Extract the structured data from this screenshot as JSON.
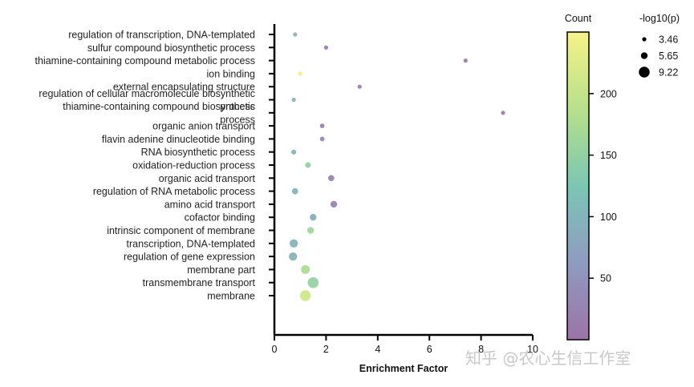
{
  "chart_data": {
    "type": "scatter",
    "title": "",
    "xlabel": "Enrichment Factor",
    "ylabel": "",
    "xlim": [
      0,
      10
    ],
    "xticks": [
      "0",
      "2",
      "4",
      "6",
      "8",
      "10"
    ],
    "categories": [
      {
        "label": [
          "regulation of transcription, DNA-templated"
        ],
        "x": 0.8,
        "count": 95,
        "size": 3.46
      },
      {
        "label": [
          "sulfur compound biosynthetic process"
        ],
        "x": 2.0,
        "count": 10,
        "size": 3.46
      },
      {
        "label": [
          "thiamine-containing compound metabolic process"
        ],
        "x": 7.4,
        "count": 8,
        "size": 3.46
      },
      {
        "label": [
          "ion binding"
        ],
        "x": 1.0,
        "count": 245,
        "size": 3.46
      },
      {
        "label": [
          "external encapsulating structure"
        ],
        "x": 3.3,
        "count": 10,
        "size": 3.46
      },
      {
        "label": [
          "regulation of cellular macromolecule biosynthetic",
          "process"
        ],
        "x": 0.75,
        "count": 95,
        "size": 3.46
      },
      {
        "label": [
          "thiamine-containing compound biosynthetic",
          "process"
        ],
        "x": 8.85,
        "count": 8,
        "size": 3.46
      },
      {
        "label": [
          "organic anion transport"
        ],
        "x": 1.85,
        "count": 20,
        "size": 3.9
      },
      {
        "label": [
          "flavin adenine dinucleotide binding"
        ],
        "x": 1.85,
        "count": 25,
        "size": 3.9
      },
      {
        "label": [
          "RNA biosynthetic process"
        ],
        "x": 0.75,
        "count": 95,
        "size": 4.2
      },
      {
        "label": [
          "oxidation-reduction process"
        ],
        "x": 1.3,
        "count": 150,
        "size": 4.8
      },
      {
        "label": [
          "organic acid transport"
        ],
        "x": 2.2,
        "count": 20,
        "size": 5.2
      },
      {
        "label": [
          "regulation of RNA metabolic process"
        ],
        "x": 0.8,
        "count": 95,
        "size": 5.2
      },
      {
        "label": [
          "amino acid transport"
        ],
        "x": 2.3,
        "count": 20,
        "size": 5.65
      },
      {
        "label": [
          "cofactor binding"
        ],
        "x": 1.5,
        "count": 90,
        "size": 5.65
      },
      {
        "label": [
          "intrinsic component of membrane"
        ],
        "x": 1.4,
        "count": 160,
        "size": 5.65
      },
      {
        "label": [
          "transcription, DNA-templated"
        ],
        "x": 0.75,
        "count": 95,
        "size": 7.0
      },
      {
        "label": [
          "regulation of gene expression"
        ],
        "x": 0.72,
        "count": 95,
        "size": 7.0
      },
      {
        "label": [
          "membrane part"
        ],
        "x": 1.2,
        "count": 175,
        "size": 7.5
      },
      {
        "label": [
          "transmembrane transport"
        ],
        "x": 1.5,
        "count": 150,
        "size": 9.22
      },
      {
        "label": [
          "membrane"
        ],
        "x": 1.2,
        "count": 210,
        "size": 9.22
      }
    ],
    "color_scale": {
      "title": "Count",
      "min": 0,
      "max": 250,
      "ticks": [
        50,
        100,
        150,
        200
      ],
      "stops": [
        "#9b74a6",
        "#8f9bbf",
        "#7cc6b4",
        "#b7e08a",
        "#f6f28a"
      ]
    },
    "size_legend": {
      "title": "-log10(p)",
      "entries": [
        3.46,
        5.65,
        9.22
      ]
    },
    "grid": false,
    "legend_position": "right"
  },
  "watermark": "知乎 @农心生信工作室"
}
